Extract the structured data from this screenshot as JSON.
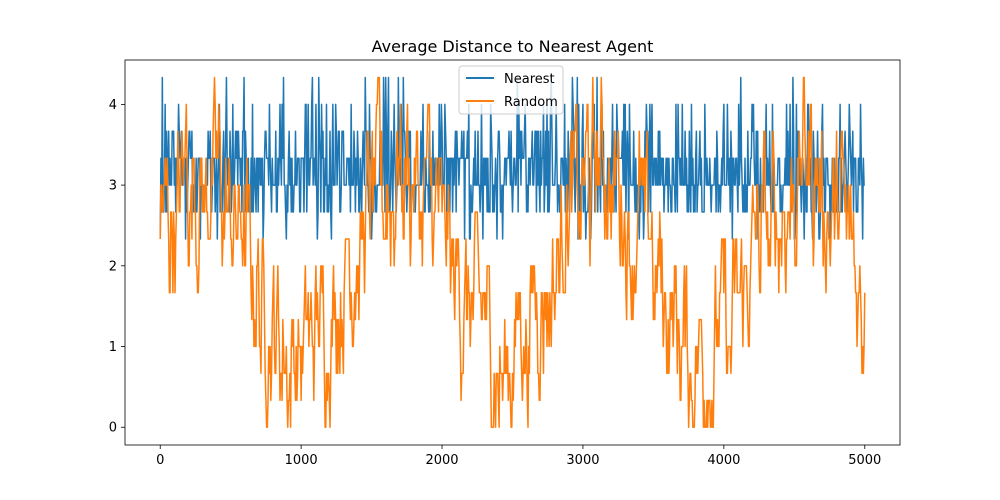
{
  "chart_data": {
    "type": "line",
    "title": "Average Distance to Nearest Agent",
    "xlabel": "",
    "ylabel": "",
    "xlim": [
      -250,
      5250
    ],
    "ylim": [
      -0.22,
      4.55
    ],
    "xticks": [
      0,
      1000,
      2000,
      3000,
      4000,
      5000
    ],
    "yticks": [
      0,
      1,
      2,
      3,
      4
    ],
    "grid": false,
    "legend_position": "top-center",
    "series": [
      {
        "name": "Nearest",
        "color": "#1f77b4",
        "x_start": 0,
        "x_step": 5,
        "value_levels": [
          2.333,
          2.667,
          3.0,
          3.333,
          3.667,
          4.0,
          4.333
        ],
        "typical_range": [
          2.667,
          3.667
        ],
        "values_note": "noisy series oscillating between 2.33 and 4.33 across x = 0 to 5000",
        "values": []
      },
      {
        "name": "Random",
        "color": "#ff7f0e",
        "x_start": 0,
        "x_step": 5,
        "value_levels": [
          0,
          0.333,
          0.667,
          1.0,
          1.333,
          1.667,
          2.0,
          2.333,
          2.667,
          3.0,
          3.333,
          3.667,
          4.0,
          4.333
        ],
        "typical_range": [
          0.333,
          4.333
        ],
        "values": []
      }
    ]
  }
}
